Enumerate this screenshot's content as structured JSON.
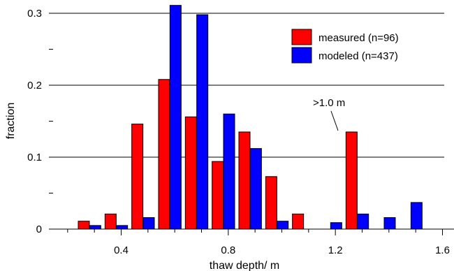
{
  "chart_data": {
    "type": "bar",
    "title": "",
    "xlabel": "thaw depth/ m",
    "ylabel": "fraction",
    "xlim": [
      0.2,
      1.6
    ],
    "ylim": [
      0,
      0.32
    ],
    "x_ticks": [
      {
        "value": 0.4,
        "label": "0.4"
      },
      {
        "value": 0.8,
        "label": "0.8"
      },
      {
        "value": 1.2,
        "label": "1.2"
      },
      {
        "value": 1.6,
        "label": "1.6"
      }
    ],
    "y_ticks": [
      {
        "value": 0,
        "label": "0"
      },
      {
        "value": 0.1,
        "label": "0.1"
      },
      {
        "value": 0.2,
        "label": "0.2"
      },
      {
        "value": 0.3,
        "label": "0.3"
      }
    ],
    "grid": "horizontal",
    "legend_position": "top-right",
    "series": [
      {
        "name": "measured (n=96)",
        "color": "#ff0000",
        "x": [
          0.25,
          0.35,
          0.45,
          0.55,
          0.65,
          0.75,
          0.85,
          0.95,
          1.05,
          1.25
        ],
        "values": [
          0.011,
          0.021,
          0.146,
          0.208,
          0.156,
          0.094,
          0.135,
          0.073,
          0.021,
          0.135
        ]
      },
      {
        "name": "modeled (n=437)",
        "color": "#0000ff",
        "x": [
          0.35,
          0.45,
          0.55,
          0.65,
          0.75,
          0.85,
          0.95,
          1.05,
          1.25,
          1.35,
          1.45,
          1.55
        ],
        "values": [
          0.005,
          0.005,
          0.016,
          0.311,
          0.298,
          0.16,
          0.112,
          0.011,
          0.009,
          0.021,
          0.016,
          0.037
        ]
      }
    ],
    "annotations": [
      {
        "text": ">1.0 m",
        "points_to_x": 1.25
      }
    ]
  }
}
